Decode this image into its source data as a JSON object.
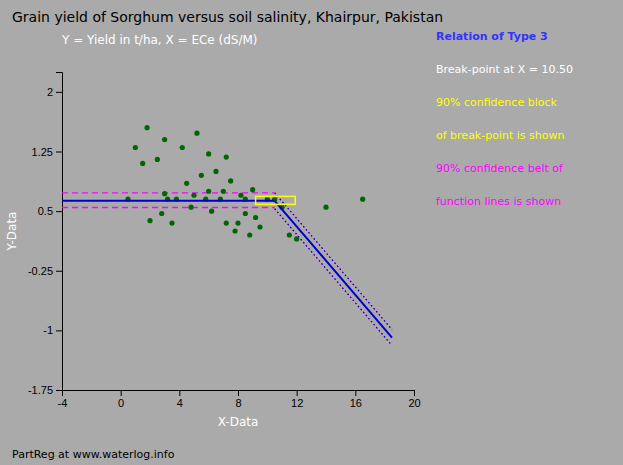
{
  "chart_data": {
    "type": "scatter",
    "title": "Grain yield of Sorghum versus soil salinity, Khairpur, Pakistan",
    "subtitle": "Y = Yield in t/ha, X = ECe (dS/M)",
    "xlabel": "X-Data",
    "ylabel": "Y-Data",
    "xlim": [
      -4,
      20
    ],
    "ylim": [
      -1.75,
      2.25
    ],
    "xticks": [
      -4,
      0,
      4,
      8,
      12,
      16,
      20
    ],
    "yticks": [
      -1.75,
      -1,
      -0.25,
      0.5,
      1.25,
      2
    ],
    "grid": false,
    "series": [
      {
        "type": "line",
        "color": "#ff00ff",
        "line_style": "dashed",
        "x": [
          -4,
          10.5
        ],
        "values": [
          0.73,
          0.73
        ]
      },
      {
        "type": "line",
        "color": "#ff00ff",
        "line_style": "dashed",
        "x": [
          -4,
          10.5
        ],
        "values": [
          0.545,
          0.545
        ]
      },
      {
        "type": "line",
        "color": "#ff00ff",
        "line_style": "dotted",
        "x": [
          10.5,
          18.5
        ],
        "values": [
          0.73,
          -0.99
        ]
      },
      {
        "type": "line",
        "color": "#ff00ff",
        "line_style": "dotted",
        "x": [
          10.5,
          18.5
        ],
        "values": [
          0.53,
          -1.19
        ]
      },
      {
        "type": "scatter",
        "color": "#006600",
        "marker": "circle",
        "x": [
          0.5,
          1.0,
          1.5,
          2.0,
          2.5,
          3.0,
          3.2,
          3.5,
          3.8,
          4.2,
          4.5,
          5.0,
          5.5,
          5.8,
          6.0,
          6.2,
          6.5,
          6.8,
          7.0,
          7.2,
          7.5,
          7.8,
          8.0,
          8.2,
          8.5,
          8.8,
          9.0,
          9.5,
          10.0,
          10.5,
          11.0,
          11.5,
          12.0,
          14.0,
          16.5,
          2.8,
          4.8,
          6.0,
          7.2,
          8.5,
          1.8,
          3.0,
          5.2,
          9.2
        ],
        "values": [
          0.65,
          1.3,
          1.1,
          0.38,
          1.15,
          0.72,
          0.65,
          0.35,
          0.65,
          1.3,
          0.85,
          0.7,
          0.95,
          0.65,
          0.75,
          0.5,
          1.0,
          0.65,
          0.75,
          0.35,
          0.88,
          0.25,
          0.35,
          0.7,
          0.65,
          0.2,
          0.77,
          0.3,
          0.65,
          0.65,
          0.55,
          0.2,
          0.15,
          0.55,
          0.65,
          0.47,
          0.55,
          1.22,
          1.18,
          0.47,
          1.55,
          1.4,
          1.48,
          0.42
        ]
      },
      {
        "type": "line",
        "color": "#0000cc",
        "line_style": "dotted",
        "x": [
          10.5,
          18.5
        ],
        "values": [
          0.73,
          -0.99
        ]
      },
      {
        "type": "line",
        "color": "#0000cc",
        "line_style": "dotted",
        "x": [
          10.5,
          18.5
        ],
        "values": [
          0.53,
          -1.19
        ]
      },
      {
        "type": "line",
        "color": "#0000cc",
        "line_style": "solid",
        "x": [
          -4,
          10.5
        ],
        "values": [
          0.63,
          0.63
        ]
      },
      {
        "type": "line",
        "color": "#0000cc",
        "line_style": "solid",
        "x": [
          10.5,
          18.5
        ],
        "values": [
          0.63,
          -1.09
        ]
      }
    ],
    "box": {
      "x": [
        9.2,
        11.9
      ],
      "y": [
        0.585,
        0.685
      ],
      "color": "yellow"
    },
    "annotations": [
      {
        "text": "Relation of Type 3",
        "color": "#3333ff"
      },
      {
        "text": "Break-point at X = 10.50",
        "color": "white"
      },
      {
        "text": "90% confidence block",
        "color": "yellow"
      },
      {
        "text": "of break-point is shown",
        "color": "yellow"
      },
      {
        "text": "90% confidence belt of",
        "color": "#ff00ff"
      },
      {
        "text": "function lines is shown",
        "color": "#ff00ff"
      }
    ],
    "footer": "PartReg at www.waterlog.info"
  }
}
